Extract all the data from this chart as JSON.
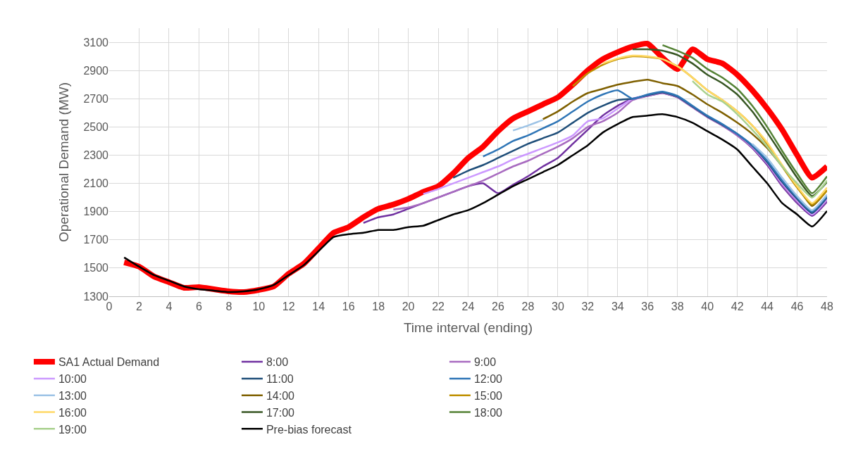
{
  "chart_data": {
    "type": "line",
    "xlabel": "Time interval (ending)",
    "ylabel": "Operational Demand (MW)",
    "x": [
      1,
      2,
      3,
      4,
      5,
      6,
      7,
      8,
      9,
      10,
      11,
      12,
      13,
      14,
      15,
      16,
      17,
      18,
      19,
      20,
      21,
      22,
      23,
      24,
      25,
      26,
      27,
      28,
      29,
      30,
      31,
      32,
      33,
      34,
      35,
      36,
      37,
      38,
      39,
      40,
      41,
      42,
      43,
      44,
      45,
      46,
      47,
      48
    ],
    "xlim": [
      0,
      48
    ],
    "xticks": [
      0,
      2,
      4,
      6,
      8,
      10,
      12,
      14,
      16,
      18,
      20,
      22,
      24,
      26,
      28,
      30,
      32,
      34,
      36,
      38,
      40,
      42,
      44,
      46,
      48
    ],
    "ylim": [
      1300,
      3200
    ],
    "yticks": [
      1300,
      1500,
      1700,
      1900,
      2100,
      2300,
      2500,
      2700,
      2900,
      3100
    ],
    "grid": true,
    "legend": "bottom",
    "marker": "none",
    "line_style": "solid",
    "series": [
      {
        "name": "SA1 Actual Demand",
        "color": "#ff0000",
        "values": [
          1540,
          1510,
          1440,
          1400,
          1360,
          1365,
          1350,
          1335,
          1330,
          1345,
          1370,
          1460,
          1530,
          1640,
          1750,
          1790,
          1860,
          1920,
          1950,
          1990,
          2040,
          2080,
          2170,
          2280,
          2360,
          2470,
          2560,
          2610,
          2660,
          2710,
          2800,
          2900,
          2980,
          3030,
          3070,
          3090,
          2990,
          2910,
          3050,
          2980,
          2950,
          2870,
          2760,
          2630,
          2480,
          2300,
          2140,
          2220
        ]
      },
      {
        "name": "8:00",
        "color": "#7030a0",
        "values": [
          null,
          null,
          null,
          null,
          null,
          null,
          null,
          null,
          null,
          null,
          null,
          null,
          null,
          null,
          null,
          null,
          1820,
          1860,
          1880,
          1920,
          1960,
          2000,
          2040,
          2080,
          2100,
          2030,
          2090,
          2150,
          2220,
          2280,
          2380,
          2480,
          2580,
          2650,
          2700,
          2720,
          2740,
          2710,
          2640,
          2570,
          2510,
          2440,
          2350,
          2230,
          2080,
          1960,
          1870,
          1970
        ]
      },
      {
        "name": "9:00",
        "color": "#a86bc0",
        "values": [
          null,
          null,
          null,
          null,
          null,
          null,
          null,
          null,
          null,
          null,
          null,
          null,
          null,
          null,
          null,
          null,
          null,
          null,
          1915,
          1930,
          1960,
          2000,
          2040,
          2080,
          2120,
          2170,
          2220,
          2260,
          2310,
          2360,
          2420,
          2500,
          2540,
          2600,
          2690,
          2720,
          2740,
          2710,
          2640,
          2570,
          2510,
          2440,
          2355,
          2240,
          2090,
          1970,
          1880,
          1980
        ]
      },
      {
        "name": "10:00",
        "color": "#cc99ff",
        "values": [
          null,
          null,
          null,
          null,
          null,
          null,
          null,
          null,
          null,
          null,
          null,
          null,
          null,
          null,
          null,
          null,
          null,
          null,
          null,
          null,
          2025,
          2060,
          2100,
          2140,
          2180,
          2220,
          2270,
          2310,
          2350,
          2390,
          2440,
          2540,
          2560,
          2630,
          2700,
          2725,
          2745,
          2715,
          2645,
          2575,
          2515,
          2450,
          2360,
          2245,
          2100,
          1980,
          1880,
          1990
        ]
      },
      {
        "name": "11:00",
        "color": "#1f4e79",
        "values": [
          null,
          null,
          null,
          null,
          null,
          null,
          null,
          null,
          null,
          null,
          null,
          null,
          null,
          null,
          null,
          null,
          null,
          null,
          null,
          null,
          null,
          null,
          2140,
          2190,
          2230,
          2280,
          2330,
          2380,
          2420,
          2460,
          2530,
          2600,
          2650,
          2690,
          2700,
          2725,
          2745,
          2715,
          2645,
          2575,
          2515,
          2450,
          2365,
          2250,
          2110,
          1990,
          1890,
          2000
        ]
      },
      {
        "name": "12:00",
        "color": "#2e75b6",
        "values": [
          null,
          null,
          null,
          null,
          null,
          null,
          null,
          null,
          null,
          null,
          null,
          null,
          null,
          null,
          null,
          null,
          null,
          null,
          null,
          null,
          null,
          null,
          null,
          null,
          2290,
          2340,
          2400,
          2440,
          2490,
          2540,
          2610,
          2680,
          2730,
          2760,
          2700,
          2730,
          2750,
          2720,
          2650,
          2580,
          2520,
          2450,
          2370,
          2260,
          2120,
          2000,
          1900,
          2010
        ]
      },
      {
        "name": "13:00",
        "color": "#9dc3e6",
        "values": [
          null,
          null,
          null,
          null,
          null,
          null,
          null,
          null,
          null,
          null,
          null,
          null,
          null,
          null,
          null,
          null,
          null,
          null,
          null,
          null,
          null,
          null,
          null,
          null,
          null,
          null,
          2475,
          2510,
          2550,
          null,
          null,
          null,
          null,
          null,
          null,
          null,
          null,
          null,
          null,
          null,
          null,
          null,
          2380,
          2280,
          2140,
          2010,
          1910,
          2020
        ]
      },
      {
        "name": "14:00",
        "color": "#7f6000",
        "values": [
          null,
          null,
          null,
          null,
          null,
          null,
          null,
          null,
          null,
          null,
          null,
          null,
          null,
          null,
          null,
          null,
          null,
          null,
          null,
          null,
          null,
          null,
          null,
          null,
          null,
          null,
          null,
          null,
          2555,
          2610,
          2680,
          2740,
          2770,
          2800,
          2820,
          2835,
          2810,
          2790,
          2730,
          2660,
          2600,
          2530,
          2450,
          2350,
          2220,
          2080,
          1940,
          2050
        ]
      },
      {
        "name": "15:00",
        "color": "#bf9000",
        "values": [
          null,
          null,
          null,
          null,
          null,
          null,
          null,
          null,
          null,
          null,
          null,
          null,
          null,
          null,
          null,
          null,
          null,
          null,
          null,
          null,
          null,
          null,
          null,
          null,
          null,
          null,
          null,
          null,
          null,
          null,
          2790,
          2880,
          2940,
          2980,
          3000,
          2995,
          2980,
          2930,
          2850,
          2760,
          2690,
          2610,
          2510,
          2380,
          2220,
          2070,
          1950,
          2050
        ]
      },
      {
        "name": "16:00",
        "color": "#ffd966",
        "values": [
          null,
          null,
          null,
          null,
          null,
          null,
          null,
          null,
          null,
          null,
          null,
          null,
          null,
          null,
          null,
          null,
          null,
          null,
          null,
          null,
          null,
          null,
          null,
          null,
          null,
          null,
          null,
          null,
          null,
          null,
          null,
          null,
          2950,
          2985,
          3005,
          3000,
          2980,
          2930,
          2850,
          2760,
          2690,
          2610,
          2510,
          2390,
          2230,
          2080,
          1960,
          2070
        ]
      },
      {
        "name": "17:00",
        "color": "#375623",
        "values": [
          null,
          null,
          null,
          null,
          null,
          null,
          null,
          null,
          null,
          null,
          null,
          null,
          null,
          null,
          null,
          null,
          null,
          null,
          null,
          null,
          null,
          null,
          null,
          null,
          null,
          null,
          null,
          null,
          null,
          null,
          null,
          null,
          null,
          null,
          3050,
          3050,
          3040,
          3010,
          2950,
          2870,
          2810,
          2730,
          2610,
          2460,
          2300,
          2140,
          2010,
          2110
        ]
      },
      {
        "name": "18:00",
        "color": "#548235",
        "values": [
          null,
          null,
          null,
          null,
          null,
          null,
          null,
          null,
          null,
          null,
          null,
          null,
          null,
          null,
          null,
          null,
          null,
          null,
          null,
          null,
          null,
          null,
          null,
          null,
          null,
          null,
          null,
          null,
          null,
          null,
          null,
          null,
          null,
          null,
          null,
          null,
          3080,
          3040,
          2990,
          2910,
          2850,
          2770,
          2650,
          2500,
          2330,
          2170,
          2030,
          2150
        ]
      },
      {
        "name": "19:00",
        "color": "#a9d18e",
        "values": [
          null,
          null,
          null,
          null,
          null,
          null,
          null,
          null,
          null,
          null,
          null,
          null,
          null,
          null,
          null,
          null,
          null,
          null,
          null,
          null,
          null,
          null,
          null,
          null,
          null,
          null,
          null,
          null,
          null,
          null,
          null,
          null,
          null,
          null,
          null,
          null,
          null,
          null,
          2825,
          2730,
          2680,
          2590,
          2480,
          2360,
          2220,
          2100,
          2000,
          2120
        ]
      },
      {
        "name": "Pre-bias forecast",
        "color": "#000000",
        "values": [
          1575,
          1510,
          1450,
          1410,
          1370,
          1350,
          1340,
          1330,
          1335,
          1350,
          1380,
          1450,
          1520,
          1620,
          1720,
          1740,
          1750,
          1770,
          1770,
          1790,
          1800,
          1840,
          1880,
          1910,
          1960,
          2020,
          2080,
          2130,
          2180,
          2230,
          2300,
          2370,
          2460,
          2520,
          2570,
          2580,
          2590,
          2570,
          2530,
          2470,
          2410,
          2340,
          2220,
          2100,
          1960,
          1880,
          1795,
          1905
        ]
      }
    ]
  }
}
